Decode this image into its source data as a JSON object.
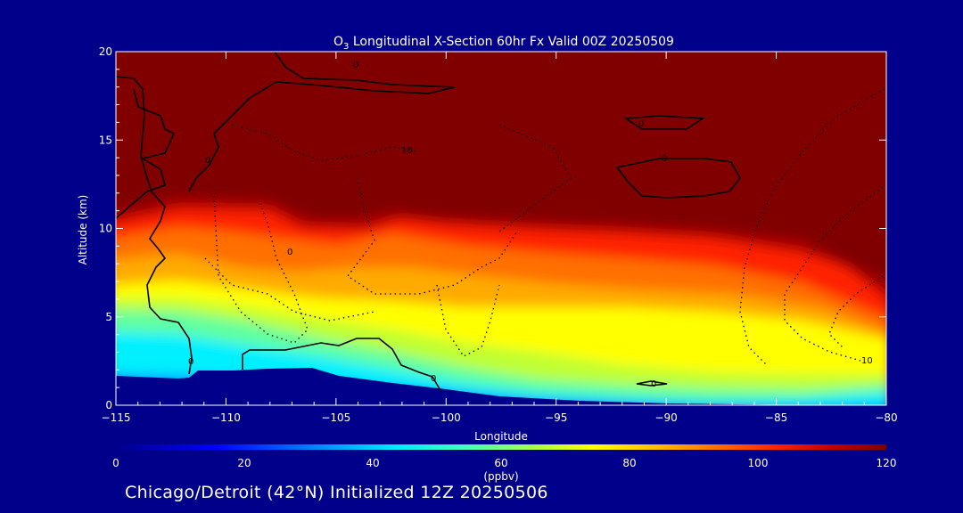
{
  "chart_data": {
    "type": "heatmap",
    "title_prefix": "O",
    "title_subscript": "3",
    "title_rest": " Longitudinal X-Section 60hr  Fx Valid 00Z 20250509",
    "xlabel": "Longitude",
    "ylabel": "Altitude (km)",
    "xlim": [
      -115,
      -80
    ],
    "ylim": [
      0,
      20
    ],
    "xticks": [
      -115,
      -110,
      -105,
      -100,
      -95,
      -90,
      -85,
      -80
    ],
    "xtick_labels": [
      "−115",
      "−110",
      "−105",
      "−100",
      "−95",
      "−90",
      "−85",
      "−80"
    ],
    "yticks": [
      0,
      5,
      10,
      15,
      20
    ],
    "ytick_labels": [
      "0",
      "5",
      "10",
      "15",
      "20"
    ],
    "colorbar": {
      "min": 0,
      "max": 120,
      "ticks": [
        0,
        20,
        40,
        60,
        80,
        100,
        120
      ],
      "tick_labels": [
        "0",
        "20",
        "40",
        "60",
        "80",
        "100",
        "120"
      ],
      "unit": "(ppbv)",
      "colors": [
        "#00008b",
        "#0000ff",
        "#0080ff",
        "#00e5ff",
        "#40ffd0",
        "#a0ff60",
        "#ffff00",
        "#ffc000",
        "#ff7000",
        "#ff2000",
        "#c00000",
        "#800000"
      ]
    },
    "contour_labels": [
      "0",
      "0",
      "0",
      "0",
      "0",
      "10",
      "10",
      "0",
      "0",
      "0"
    ],
    "terrain_km": [
      {
        "lon": -115,
        "alt": 1.6
      },
      {
        "lon": -112,
        "alt": 1.5
      },
      {
        "lon": -111,
        "alt": 1.9
      },
      {
        "lon": -109,
        "alt": 2.0
      },
      {
        "lon": -106,
        "alt": 2.0
      },
      {
        "lon": -105,
        "alt": 1.6
      },
      {
        "lon": -103,
        "alt": 1.2
      },
      {
        "lon": -100,
        "alt": 0.9
      },
      {
        "lon": -95,
        "alt": 0.5
      },
      {
        "lon": -90,
        "alt": 0.3
      },
      {
        "lon": -85,
        "alt": 0.2
      },
      {
        "lon": -80,
        "alt": 0.1
      }
    ],
    "tropopause_km": [
      {
        "lon": -115,
        "alt": 10.5
      },
      {
        "lon": -110,
        "alt": 11.2
      },
      {
        "lon": -107,
        "alt": 11.0
      },
      {
        "lon": -106,
        "alt": 10.4
      },
      {
        "lon": -104,
        "alt": 9.9
      },
      {
        "lon": -102,
        "alt": 10.6
      },
      {
        "lon": -100,
        "alt": 10.4
      },
      {
        "lon": -95,
        "alt": 10.2
      },
      {
        "lon": -90,
        "alt": 10.0
      },
      {
        "lon": -85,
        "alt": 9.6
      },
      {
        "lon": -82,
        "alt": 8.5
      },
      {
        "lon": -80,
        "alt": 6.2
      }
    ]
  },
  "footer": "Chicago/Detroit (42°N) Initialized 12Z 20250506"
}
